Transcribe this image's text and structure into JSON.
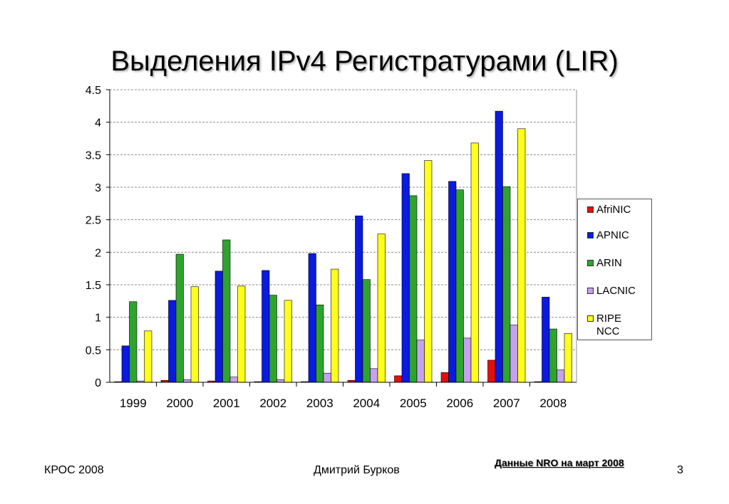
{
  "page": {
    "title": "Выделения IPv4 Регистратурами (LIR)",
    "footer_left": "КРОС 2008",
    "footer_center": "Дмитрий Бурков",
    "footer_right": "3",
    "source_note": "Данные NRO на март 2008"
  },
  "chart_data": {
    "type": "bar",
    "title": "Выделения IPv4 Регистратурами (LIR)",
    "xlabel": "",
    "ylabel": "",
    "ylim": [
      0,
      4.5
    ],
    "yticks": [
      "0",
      "0.5",
      "1",
      "1.5",
      "2",
      "2.5",
      "3",
      "3.5",
      "4",
      "4.5"
    ],
    "grid": true,
    "legend_position": "right",
    "categories": [
      "1999",
      "2000",
      "2001",
      "2002",
      "2003",
      "2004",
      "2005",
      "2006",
      "2007",
      "2008"
    ],
    "series": [
      {
        "name": "AfriNIC",
        "color": "#e01010",
        "values": [
          0.0,
          0.03,
          0.02,
          0.01,
          0.01,
          0.03,
          0.1,
          0.15,
          0.34,
          0.01
        ]
      },
      {
        "name": "APNIC",
        "color": "#0a1adf",
        "values": [
          0.56,
          1.26,
          1.71,
          1.72,
          1.98,
          2.56,
          3.21,
          3.09,
          4.17,
          1.31
        ]
      },
      {
        "name": "ARIN",
        "color": "#2ea42e",
        "values": [
          1.24,
          1.97,
          2.19,
          1.34,
          1.19,
          1.58,
          2.87,
          2.96,
          3.01,
          0.82
        ]
      },
      {
        "name": "LACNIC",
        "color": "#c8a0f0",
        "values": [
          0.02,
          0.04,
          0.08,
          0.04,
          0.14,
          0.21,
          0.65,
          0.68,
          0.88,
          0.19
        ]
      },
      {
        "name": "RIPE NCC",
        "color": "#ffff1a",
        "values": [
          0.79,
          1.47,
          1.48,
          1.26,
          1.74,
          2.28,
          3.41,
          3.68,
          3.9,
          0.75
        ]
      }
    ]
  }
}
